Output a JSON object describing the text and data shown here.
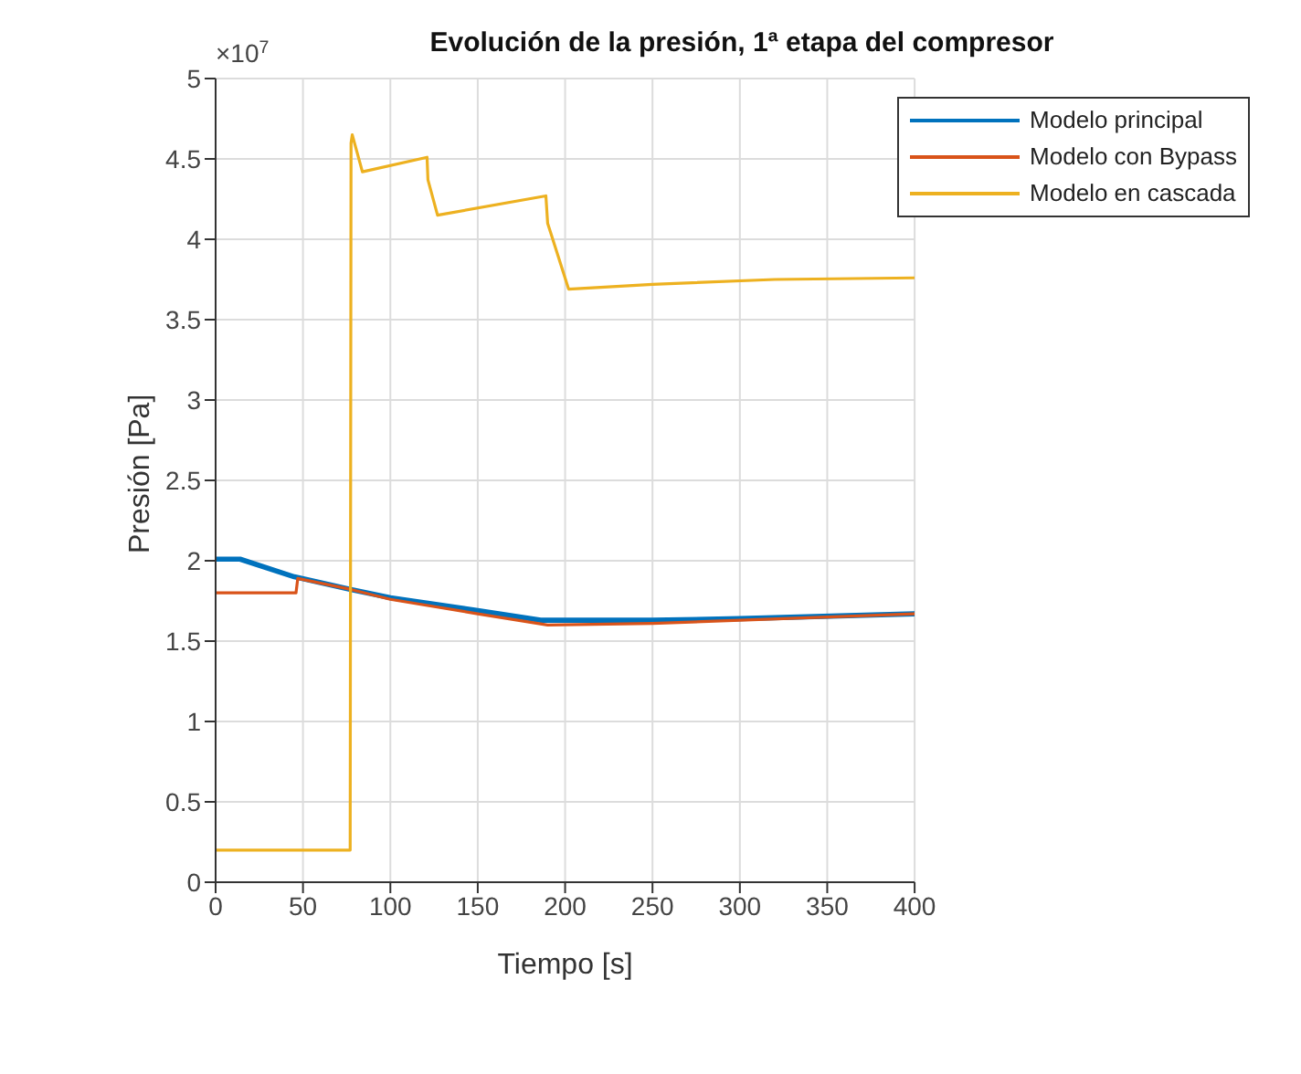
{
  "chart_data": {
    "type": "line",
    "title": "Evolución de la presión, 1ª etapa del compresor",
    "xlabel": "Tiempo [s]",
    "ylabel": "Presión [Pa]",
    "annotations": [
      "×10$^{7}$"
    ],
    "xlim": [
      0,
      400
    ],
    "xticks": [
      0,
      50,
      100,
      150,
      200,
      250,
      300,
      350,
      400
    ],
    "ylim": [
      0,
      5
    ],
    "yticks": [
      0,
      0.5,
      1,
      1.5,
      2,
      2.5,
      3,
      3.5,
      4,
      4.5,
      5
    ],
    "grid": true,
    "legend": "top right",
    "marker": "none",
    "line_style": "solid",
    "series": [
      {
        "name": "Modelo principal",
        "color": "#0072bd",
        "x": [
          0,
          14,
          45,
          78,
          100,
          150,
          186,
          250,
          300,
          400
        ],
        "values": [
          2.01,
          2.01,
          1.9,
          1.82,
          1.77,
          1.69,
          1.63,
          1.63,
          1.64,
          1.67
        ]
      },
      {
        "name": "Modelo con Bypass",
        "color": "#d95319",
        "x": [
          0,
          46,
          47,
          78,
          100,
          150,
          190,
          250,
          300,
          400
        ],
        "values": [
          1.8,
          1.8,
          1.89,
          1.82,
          1.76,
          1.67,
          1.6,
          1.61,
          1.63,
          1.67
        ]
      },
      {
        "name": "Modelo en cascada",
        "color": "#edb120",
        "x": [
          0,
          77,
          77.5,
          78.2,
          84,
          121,
          121.5,
          127,
          189,
          190,
          202,
          250,
          320,
          400
        ],
        "values": [
          0.2,
          0.2,
          4.6,
          4.65,
          4.42,
          4.51,
          4.37,
          4.15,
          4.27,
          4.1,
          3.69,
          3.72,
          3.75,
          3.76
        ]
      }
    ]
  }
}
